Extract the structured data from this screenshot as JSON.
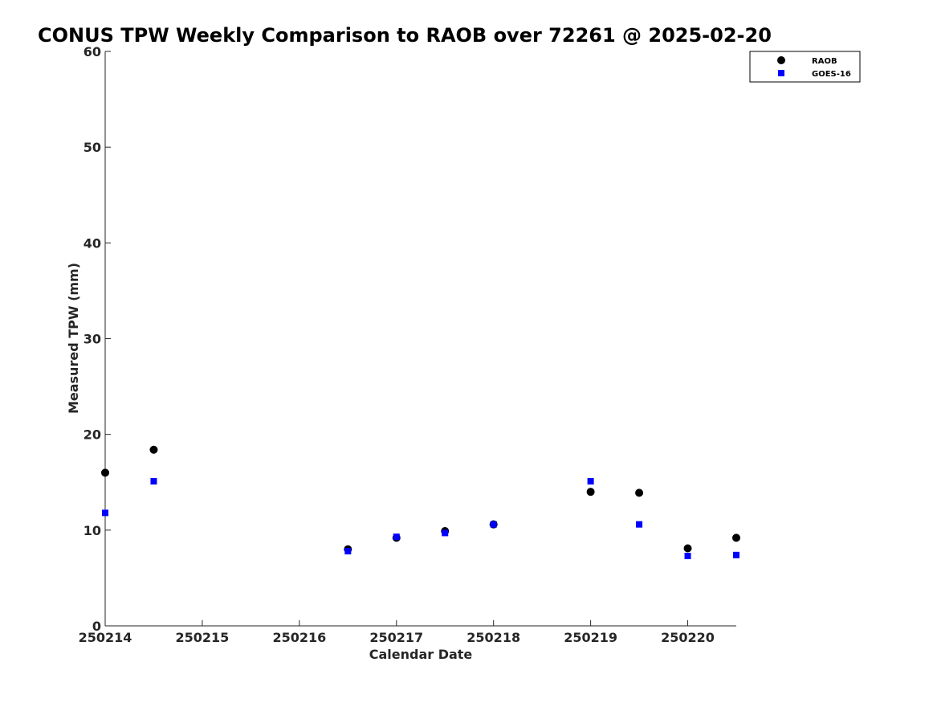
{
  "chart_data": {
    "type": "scatter",
    "title": "CONUS TPW Weekly Comparison to RAOB over 72261 @ 2025-02-20",
    "xlabel": "Calendar Date",
    "ylabel": "Measured TPW (mm)",
    "xlim": [
      250214,
      250220.5
    ],
    "ylim": [
      0,
      60
    ],
    "xticks": [
      250214,
      250215,
      250216,
      250217,
      250218,
      250219,
      250220
    ],
    "xtick_labels": [
      "250214",
      "250215",
      "250216",
      "250217",
      "250218",
      "250219",
      "250220"
    ],
    "yticks": [
      0,
      10,
      20,
      30,
      40,
      50,
      60
    ],
    "ytick_labels": [
      "0",
      "10",
      "20",
      "30",
      "40",
      "50",
      "60"
    ],
    "grid": false,
    "legend_position": "top-right",
    "series": [
      {
        "name": "RAOB",
        "marker": "circle",
        "color": "#000000",
        "points": [
          {
            "x": 250214.0,
            "y": 16.0
          },
          {
            "x": 250214.5,
            "y": 18.4
          },
          {
            "x": 250216.5,
            "y": 8.0
          },
          {
            "x": 250217.0,
            "y": 9.2
          },
          {
            "x": 250217.5,
            "y": 9.9
          },
          {
            "x": 250218.0,
            "y": 10.6
          },
          {
            "x": 250219.0,
            "y": 14.0
          },
          {
            "x": 250219.5,
            "y": 13.9
          },
          {
            "x": 250220.0,
            "y": 8.1
          },
          {
            "x": 250220.5,
            "y": 9.2
          }
        ]
      },
      {
        "name": "GOES-16",
        "marker": "square",
        "color": "#0000ff",
        "points": [
          {
            "x": 250214.0,
            "y": 11.8
          },
          {
            "x": 250214.5,
            "y": 15.1
          },
          {
            "x": 250216.5,
            "y": 7.8
          },
          {
            "x": 250217.0,
            "y": 9.3
          },
          {
            "x": 250217.5,
            "y": 9.7
          },
          {
            "x": 250218.0,
            "y": 10.6
          },
          {
            "x": 250219.0,
            "y": 15.1
          },
          {
            "x": 250219.5,
            "y": 10.6
          },
          {
            "x": 250220.0,
            "y": 7.3
          },
          {
            "x": 250220.5,
            "y": 7.4
          }
        ]
      }
    ]
  }
}
